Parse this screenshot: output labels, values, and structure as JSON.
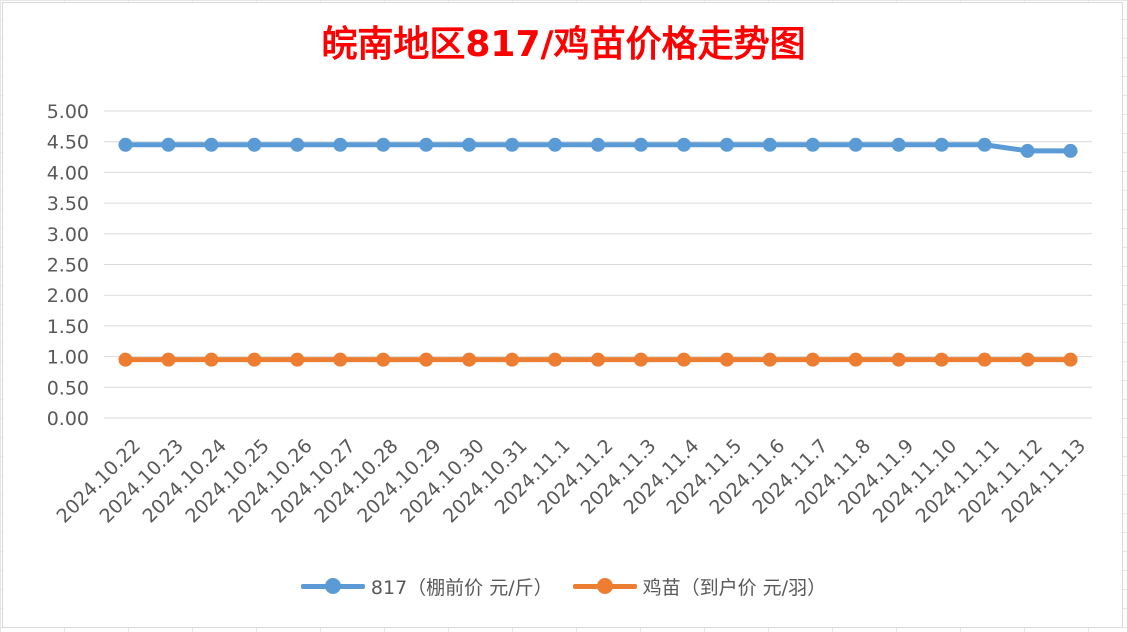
{
  "chart_data": {
    "type": "line",
    "title": "皖南地区817/鸡苗价格走势图",
    "categories": [
      "2024.10.22",
      "2024.10.23",
      "2024.10.24",
      "2024.10.25",
      "2024.10.26",
      "2024.10.27",
      "2024.10.28",
      "2024.10.29",
      "2024.10.30",
      "2024.10.31",
      "2024.11.1",
      "2024.11.2",
      "2024.11.3",
      "2024.11.4",
      "2024.11.5",
      "2024.11.6",
      "2024.11.7",
      "2024.11.8",
      "2024.11.9",
      "2024.11.10",
      "2024.11.11",
      "2024.11.12",
      "2024.11.13"
    ],
    "series": [
      {
        "name": "817（棚前价 元/斤）",
        "color": "#5b9bd5",
        "values": [
          4.45,
          4.45,
          4.45,
          4.45,
          4.45,
          4.45,
          4.45,
          4.45,
          4.45,
          4.45,
          4.45,
          4.45,
          4.45,
          4.45,
          4.45,
          4.45,
          4.45,
          4.45,
          4.45,
          4.45,
          4.45,
          4.35,
          4.35
        ]
      },
      {
        "name": "鸡苗（到户价 元/羽）",
        "color": "#ed7d31",
        "values": [
          0.95,
          0.95,
          0.95,
          0.95,
          0.95,
          0.95,
          0.95,
          0.95,
          0.95,
          0.95,
          0.95,
          0.95,
          0.95,
          0.95,
          0.95,
          0.95,
          0.95,
          0.95,
          0.95,
          0.95,
          0.95,
          0.95,
          0.95
        ]
      }
    ],
    "yticks": [
      "0.00",
      "0.50",
      "1.00",
      "1.50",
      "2.00",
      "2.50",
      "3.00",
      "3.50",
      "4.00",
      "4.50",
      "5.00"
    ],
    "ylim": [
      0,
      5
    ],
    "grid": true,
    "legend_position": "bottom",
    "title_color": "#ff0000"
  }
}
